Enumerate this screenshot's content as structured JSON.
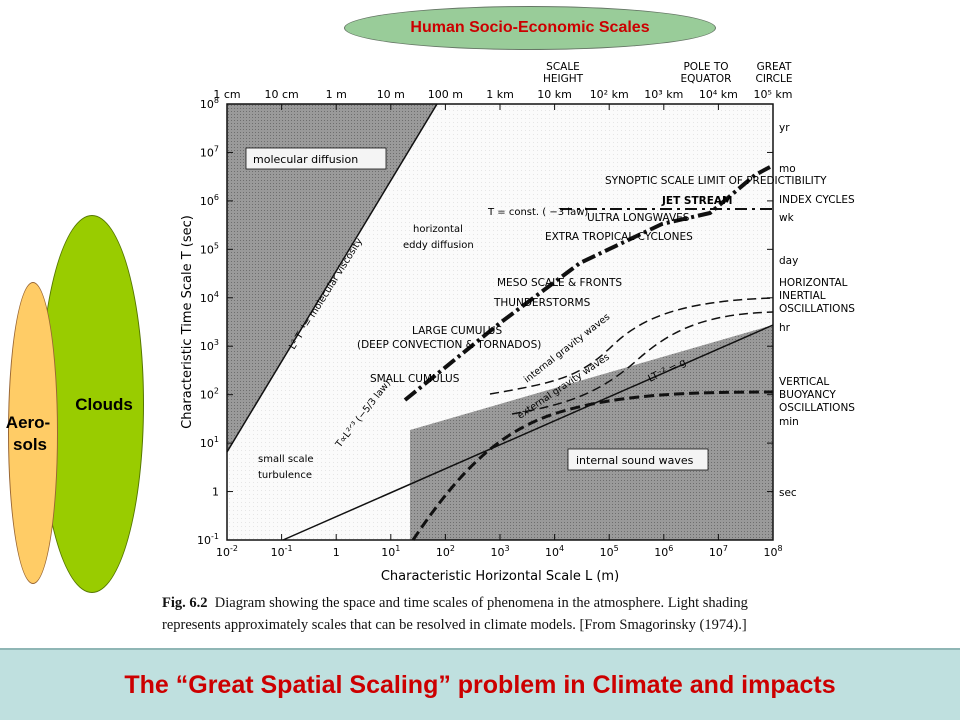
{
  "header": {
    "label": "Human Socio-Economic Scales"
  },
  "side": {
    "clouds_label": "Clouds",
    "aerosols_label_1": "Aero-",
    "aerosols_label_2": "sols"
  },
  "chart": {
    "x_title": "Characteristic Horizontal Scale L (m)",
    "y_title": "Characteristic Time Scale T (sec)",
    "x_ticks": [
      {
        "b": "10",
        "e": "-2"
      },
      {
        "b": "10",
        "e": "-1"
      },
      {
        "b": "1",
        "e": ""
      },
      {
        "b": "10",
        "e": "1"
      },
      {
        "b": "10",
        "e": "2"
      },
      {
        "b": "10",
        "e": "3"
      },
      {
        "b": "10",
        "e": "4"
      },
      {
        "b": "10",
        "e": "5"
      },
      {
        "b": "10",
        "e": "6"
      },
      {
        "b": "10",
        "e": "7"
      },
      {
        "b": "10",
        "e": "8"
      }
    ],
    "y_ticks": [
      {
        "b": "10",
        "e": "8"
      },
      {
        "b": "10",
        "e": "7"
      },
      {
        "b": "10",
        "e": "6"
      },
      {
        "b": "10",
        "e": "5"
      },
      {
        "b": "10",
        "e": "4"
      },
      {
        "b": "10",
        "e": "3"
      },
      {
        "b": "10",
        "e": "2"
      },
      {
        "b": "10",
        "e": "1"
      },
      {
        "b": "1",
        "e": ""
      },
      {
        "b": "10",
        "e": "-1"
      }
    ],
    "top_ticks": [
      "1 cm",
      "10 cm",
      "1 m",
      "10 m",
      "100 m",
      "1 km",
      "10 km",
      "10² km",
      "10³ km",
      "10⁴ km",
      "10⁵ km"
    ],
    "top_headers": {
      "scale_height": [
        "SCALE",
        "HEIGHT"
      ],
      "pole": [
        "POLE TO",
        "EQUATOR"
      ],
      "circle": [
        "GREAT",
        "CIRCLE"
      ]
    },
    "right_labels": {
      "yr": "yr",
      "mo": "mo",
      "wk": "wk",
      "day": "day",
      "hr": "hr",
      "min": "min",
      "sec": "sec",
      "index": "INDEX CYCLES",
      "horizontal": [
        "HORIZONTAL",
        "INERTIAL",
        "OSCILLATIONS"
      ],
      "vertical": [
        "VERTICAL",
        "BUOYANCY",
        "OSCILLATIONS"
      ]
    },
    "regions": {
      "molecular": "molecular diffusion",
      "sound": "internal sound waves",
      "viscosity": "L² T⁻¹= molecular viscosity",
      "horiz_eddy": [
        "horizontal",
        "eddy diffusion"
      ],
      "small_scale": [
        "small scale",
        "turbulence"
      ],
      "lt2": "LT⁻² = g",
      "internal_gw": "internal gravity waves",
      "external_gw": "external gravity waves",
      "t_const": "T = const. ( −3 law)",
      "t_l23": "T∝L²ᐟ³ (−5/3 law)"
    },
    "phenomena": {
      "synoptic": "SYNOPTIC SCALE LIMIT OF PREDICTIBILITY",
      "jet": "JET STREAM",
      "ultra": "ULTRA LONGWAVES",
      "extra": "EXTRA TROPICAL CYCLONES",
      "meso": "MESO SCALE & FRONTS",
      "thunder": "THUNDERSTORMS",
      "large": "LARGE CUMULUS",
      "deep": "(DEEP CONVECTION & TORNADOS)",
      "small_cu": "SMALL CUMULUS"
    }
  },
  "caption": {
    "fig_label": "Fig. 6.2",
    "line1": "Diagram showing the space and time scales of phenomena in the atmosphere. Light shading",
    "line2": "represents approximately scales that can be resolved in climate models. [From Smagorinsky (1974).]"
  },
  "banner": {
    "text": "The “Great Spatial Scaling” problem in Climate and impacts"
  }
}
